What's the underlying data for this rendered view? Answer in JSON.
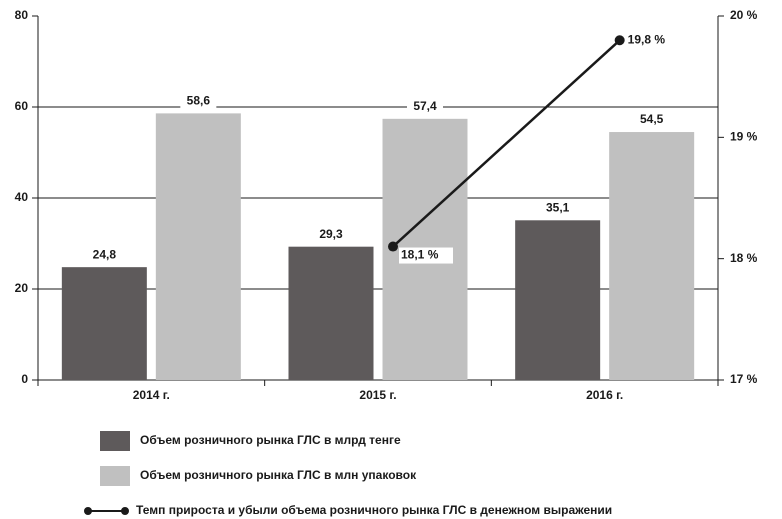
{
  "chart_data": {
    "type": "bar",
    "categories": [
      "2014 г.",
      "2015 г.",
      "2016 г."
    ],
    "series": [
      {
        "name": "Объем розничного рынка ГЛС в млрд тенге",
        "color": "#5e5a5b",
        "values": [
          24.8,
          29.3,
          35.1
        ],
        "value_labels": [
          "24,8",
          "29,3",
          "35,1"
        ]
      },
      {
        "name": "Объем розничного рынка ГЛС в млн упаковок",
        "color": "#c0c0c0",
        "values": [
          58.6,
          57.4,
          54.5
        ],
        "value_labels": [
          "58,6",
          "57,4",
          "54,5"
        ]
      },
      {
        "name": "Темп прироста и убыли объема розничного рынка ГЛС в денежном выражении",
        "type": "line",
        "axis": "y2",
        "color": "#1a1a1a",
        "values": [
          null,
          18.1,
          19.8
        ],
        "value_labels": [
          null,
          "18,1 %",
          "19,8 %"
        ]
      }
    ],
    "ylim": [
      0,
      80
    ],
    "yticks": [
      0,
      20,
      40,
      60,
      80
    ],
    "y2lim": [
      17,
      20
    ],
    "y2ticks": [
      {
        "value": 17,
        "label": "17 %"
      },
      {
        "value": 18,
        "label": "18 %"
      },
      {
        "value": 19,
        "label": "19 %"
      },
      {
        "value": 20,
        "label": "20 %"
      }
    ],
    "grid": true,
    "legend": "bottom"
  }
}
